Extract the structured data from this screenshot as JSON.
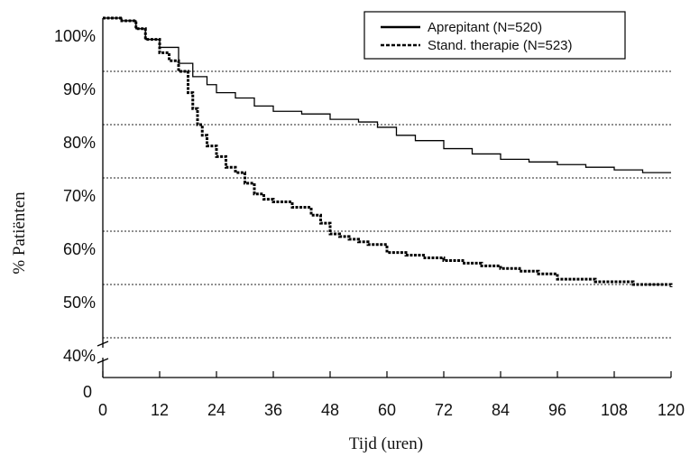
{
  "chart_data": {
    "type": "line",
    "xlabel": "Tijd (uren)",
    "ylabel": "% Patiënten",
    "xlim": [
      0,
      120
    ],
    "ylim_units": "percent",
    "x_ticks": [
      0,
      12,
      24,
      36,
      48,
      60,
      72,
      84,
      96,
      108,
      120
    ],
    "x_tick_labels": [
      "0",
      "12",
      "24",
      "36",
      "48",
      "60",
      "72",
      "84",
      "96",
      "108",
      "120"
    ],
    "y_ticks": [
      40,
      50,
      60,
      70,
      80,
      90,
      100
    ],
    "y_tick_labels": [
      "40%",
      "50%",
      "60%",
      "70%",
      "80%",
      "90%",
      "100%"
    ],
    "y_zero_label": "0",
    "axis_break": true,
    "gridlines_y": [
      40,
      50,
      60,
      70,
      80,
      90
    ],
    "legend": {
      "position": "top-right"
    },
    "series": [
      {
        "name": "Aprepitant (N=520)",
        "line_style": "solid",
        "color": "#000000",
        "x": [
          0,
          4,
          7,
          9,
          12,
          16,
          19,
          22,
          24,
          28,
          32,
          36,
          42,
          48,
          54,
          58,
          62,
          66,
          72,
          78,
          84,
          90,
          96,
          102,
          108,
          114,
          120
        ],
        "y": [
          100,
          99.5,
          98,
          96,
          94.5,
          91.5,
          89,
          87.5,
          86,
          85,
          83.5,
          82.5,
          82,
          81,
          80.5,
          79.5,
          78,
          77,
          75.5,
          74.5,
          73.5,
          73,
          72.5,
          72,
          71.5,
          71,
          71
        ]
      },
      {
        "name": "Stand. therapie (N=523)",
        "line_style": "dashed",
        "color": "#000000",
        "x": [
          0,
          4,
          7,
          9,
          12,
          14,
          16,
          18,
          19,
          20,
          21,
          22,
          24,
          26,
          28,
          30,
          32,
          34,
          36,
          40,
          44,
          46,
          48,
          50,
          52,
          54,
          56,
          60,
          64,
          68,
          72,
          76,
          80,
          84,
          88,
          92,
          96,
          100,
          104,
          108,
          112,
          116,
          120
        ],
        "y": [
          100,
          99.5,
          98,
          96,
          93.5,
          92,
          90,
          86,
          83,
          80,
          78,
          76,
          74,
          72,
          71,
          69,
          67,
          66,
          65.5,
          64.5,
          63,
          61.5,
          59.5,
          59,
          58.5,
          58,
          57.5,
          56,
          55.5,
          55,
          54.5,
          54,
          53.5,
          53,
          52.5,
          52,
          51,
          51,
          50.5,
          50.5,
          50,
          50,
          49.5
        ]
      }
    ]
  }
}
